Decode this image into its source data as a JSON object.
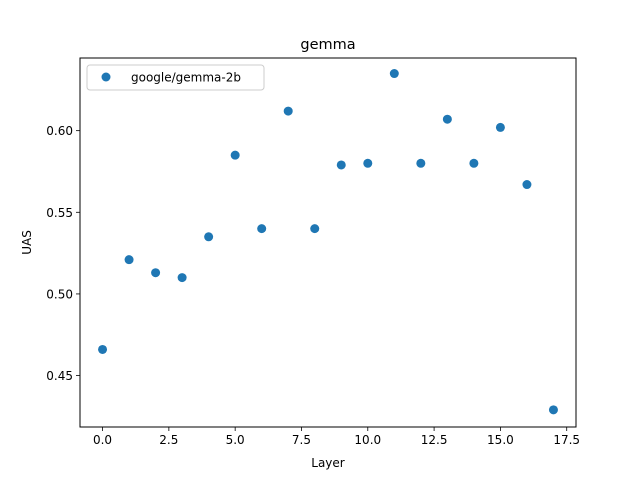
{
  "chart_data": {
    "type": "scatter",
    "title": "gemma",
    "xlabel": "Layer",
    "ylabel": "UAS",
    "xlim": [
      -0.85,
      17.85
    ],
    "ylim": [
      0.4185,
      0.6445
    ],
    "xticks": [
      0.0,
      2.5,
      5.0,
      7.5,
      10.0,
      12.5,
      15.0,
      17.5
    ],
    "xtick_labels": [
      "0.0",
      "2.5",
      "5.0",
      "7.5",
      "10.0",
      "12.5",
      "15.0",
      "17.5"
    ],
    "yticks": [
      0.45,
      0.5,
      0.55,
      0.6
    ],
    "ytick_labels": [
      "0.45",
      "0.50",
      "0.55",
      "0.60"
    ],
    "grid": false,
    "legend_position": "top-left",
    "series": [
      {
        "name": "google/gemma-2b",
        "color": "#1f77b4",
        "x": [
          0,
          1,
          2,
          3,
          4,
          5,
          6,
          7,
          8,
          9,
          10,
          11,
          12,
          13,
          14,
          15,
          16,
          17
        ],
        "y": [
          0.466,
          0.521,
          0.513,
          0.51,
          0.535,
          0.585,
          0.54,
          0.612,
          0.54,
          0.579,
          0.58,
          0.635,
          0.58,
          0.607,
          0.58,
          0.602,
          0.567,
          0.429
        ]
      }
    ]
  }
}
